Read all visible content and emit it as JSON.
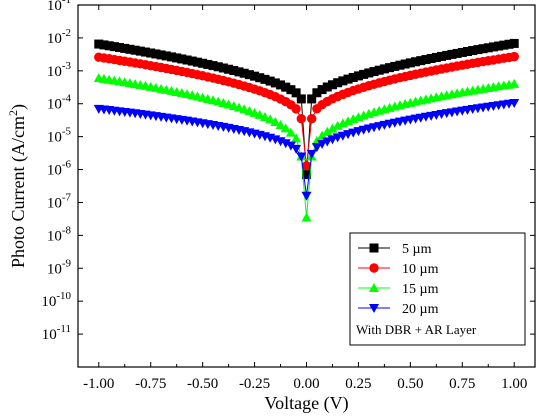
{
  "chart_data": {
    "type": "scatter",
    "title": "",
    "xlabel": "Voltage (V)",
    "ylabel": "Photo Current (A/cm^2)",
    "ylabel_text": "Photo Current (A/cm",
    "ylabel_sup": "2",
    "ylabel_close": ")",
    "xlim": [
      -1.1,
      1.1
    ],
    "ylim": [
      1e-12,
      0.1
    ],
    "yscale": "log",
    "grid": false,
    "legend_position": "bottom-right",
    "legend_note": "With DBR + AR Layer",
    "x_ticks": [
      -1.0,
      -0.75,
      -0.5,
      -0.25,
      0.0,
      0.25,
      0.5,
      0.75,
      1.0
    ],
    "x_tick_labels": [
      "-1.00",
      "-0.75",
      "-0.50",
      "-0.25",
      "0.00",
      "0.25",
      "0.50",
      "0.75",
      "1.00"
    ],
    "y_ticks": [
      {
        "value": 1e-11,
        "base": "10",
        "exp": "-11"
      },
      {
        "value": 1e-10,
        "base": "10",
        "exp": "-10"
      },
      {
        "value": 1e-09,
        "base": "10",
        "exp": "-9"
      },
      {
        "value": 1e-08,
        "base": "10",
        "exp": "-8"
      },
      {
        "value": 1e-07,
        "base": "10",
        "exp": "-7"
      },
      {
        "value": 1e-06,
        "base": "10",
        "exp": "-6"
      },
      {
        "value": 1e-05,
        "base": "10",
        "exp": "-5"
      },
      {
        "value": 0.0001,
        "base": "10",
        "exp": "-4"
      },
      {
        "value": 0.001,
        "base": "10",
        "exp": "-3"
      },
      {
        "value": 0.01,
        "base": "10",
        "exp": "-2"
      },
      {
        "value": 0.1,
        "base": "10",
        "exp": "-1"
      }
    ],
    "series": [
      {
        "name": "5 µm",
        "color": "#000000",
        "marker": "square",
        "neg_end": 0.0065,
        "pos_end": 0.0068,
        "neg_near": 0.00014,
        "pos_near": 0.00014,
        "center": 7e-07,
        "neg_exp": 0.6,
        "pos_exp": 0.6
      },
      {
        "name": "10 µm",
        "color": "#ff0000",
        "marker": "circle",
        "neg_end": 0.0026,
        "pos_end": 0.0027,
        "neg_near": 3.5e-05,
        "pos_near": 3.5e-05,
        "center": 1.3e-06,
        "neg_exp": 0.5,
        "pos_exp": 0.5
      },
      {
        "name": "15 µm",
        "color": "#00ff00",
        "marker": "triangle-up",
        "neg_end": 0.0006,
        "pos_end": 0.0004,
        "neg_near": 2.5e-06,
        "pos_near": 2.5e-06,
        "center": 3.5e-08,
        "neg_exp": 0.4,
        "pos_exp": 0.42
      },
      {
        "name": "20 µm",
        "color": "#0000ff",
        "marker": "triangle-down",
        "neg_end": 7e-05,
        "pos_end": 0.000105,
        "neg_near": 2.5e-06,
        "pos_near": 3e-06,
        "center": 1.6e-07,
        "neg_exp": 0.5,
        "pos_exp": 0.55
      }
    ]
  }
}
